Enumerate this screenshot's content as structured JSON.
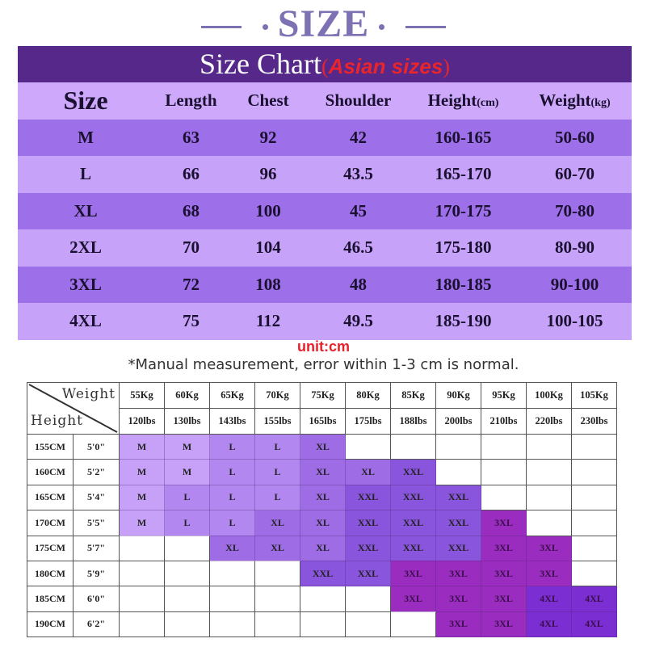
{
  "title": "SIZE",
  "size_chart": {
    "title": "Size Chart",
    "subtitle": "Asian sizes",
    "headers": {
      "size": "Size",
      "length": "Length",
      "chest": "Chest",
      "shoulder": "Shoulder",
      "height": "Height",
      "height_unit": "(cm)",
      "weight": "Weight",
      "weight_unit": "(kg)"
    },
    "rows": [
      {
        "size": "M",
        "length": "63",
        "chest": "92",
        "shoulder": "42",
        "height": "160-165",
        "weight": "50-60"
      },
      {
        "size": "L",
        "length": "66",
        "chest": "96",
        "shoulder": "43.5",
        "height": "165-170",
        "weight": "60-70"
      },
      {
        "size": "XL",
        "length": "68",
        "chest": "100",
        "shoulder": "45",
        "height": "170-175",
        "weight": "70-80"
      },
      {
        "size": "2XL",
        "length": "70",
        "chest": "104",
        "shoulder": "46.5",
        "height": "175-180",
        "weight": "80-90"
      },
      {
        "size": "3XL",
        "length": "72",
        "chest": "108",
        "shoulder": "48",
        "height": "180-185",
        "weight": "90-100"
      },
      {
        "size": "4XL",
        "length": "75",
        "chest": "112",
        "shoulder": "49.5",
        "height": "185-190",
        "weight": "100-105"
      }
    ],
    "unit": "unit:cm",
    "note": "*Manual measurement, error within 1-3 cm is normal."
  },
  "recommendation": {
    "corner_weight": "Weight",
    "corner_height": "Height",
    "weights_kg": [
      "55Kg",
      "60Kg",
      "65Kg",
      "70Kg",
      "75Kg",
      "80Kg",
      "85Kg",
      "90Kg",
      "95Kg",
      "100Kg",
      "105Kg"
    ],
    "weights_lbs": [
      "120lbs",
      "130lbs",
      "143lbs",
      "155lbs",
      "165lbs",
      "175lbs",
      "188lbs",
      "200lbs",
      "210lbs",
      "220lbs",
      "230lbs"
    ],
    "rows": [
      {
        "cm": "155CM",
        "ft": "5'0\"",
        "sizes": [
          "M",
          "M",
          "L",
          "L",
          "XL",
          "",
          "",
          "",
          "",
          "",
          ""
        ]
      },
      {
        "cm": "160CM",
        "ft": "5'2\"",
        "sizes": [
          "M",
          "M",
          "L",
          "L",
          "XL",
          "XL",
          "XXL",
          "",
          "",
          "",
          ""
        ]
      },
      {
        "cm": "165CM",
        "ft": "5'4\"",
        "sizes": [
          "M",
          "L",
          "L",
          "L",
          "XL",
          "XXL",
          "XXL",
          "XXL",
          "",
          "",
          ""
        ]
      },
      {
        "cm": "170CM",
        "ft": "5'5\"",
        "sizes": [
          "M",
          "L",
          "L",
          "XL",
          "XL",
          "XXL",
          "XXL",
          "XXL",
          "3XL",
          "",
          ""
        ]
      },
      {
        "cm": "175CM",
        "ft": "5'7\"",
        "sizes": [
          "",
          "",
          "XL",
          "XL",
          "XL",
          "XXL",
          "XXL",
          "XXL",
          "3XL",
          "3XL",
          ""
        ]
      },
      {
        "cm": "180CM",
        "ft": "5'9\"",
        "sizes": [
          "",
          "",
          "",
          "",
          "XXL",
          "XXL",
          "3XL",
          "3XL",
          "3XL",
          "3XL",
          ""
        ]
      },
      {
        "cm": "185CM",
        "ft": "6'0\"",
        "sizes": [
          "",
          "",
          "",
          "",
          "",
          "",
          "3XL",
          "3XL",
          "3XL",
          "4XL",
          "4XL"
        ]
      },
      {
        "cm": "190CM",
        "ft": "6'2\"",
        "sizes": [
          "",
          "",
          "",
          "",
          "",
          "",
          "",
          "3XL",
          "3XL",
          "4XL",
          "4XL"
        ]
      }
    ],
    "size_colors": {
      "M": "#c7a1f7",
      "L": "#b287f0",
      "XL": "#9e6de6",
      "XXL": "#8a55dd",
      "3XL": "#9a2cbf",
      "4XL": "#7b2ed2"
    }
  }
}
